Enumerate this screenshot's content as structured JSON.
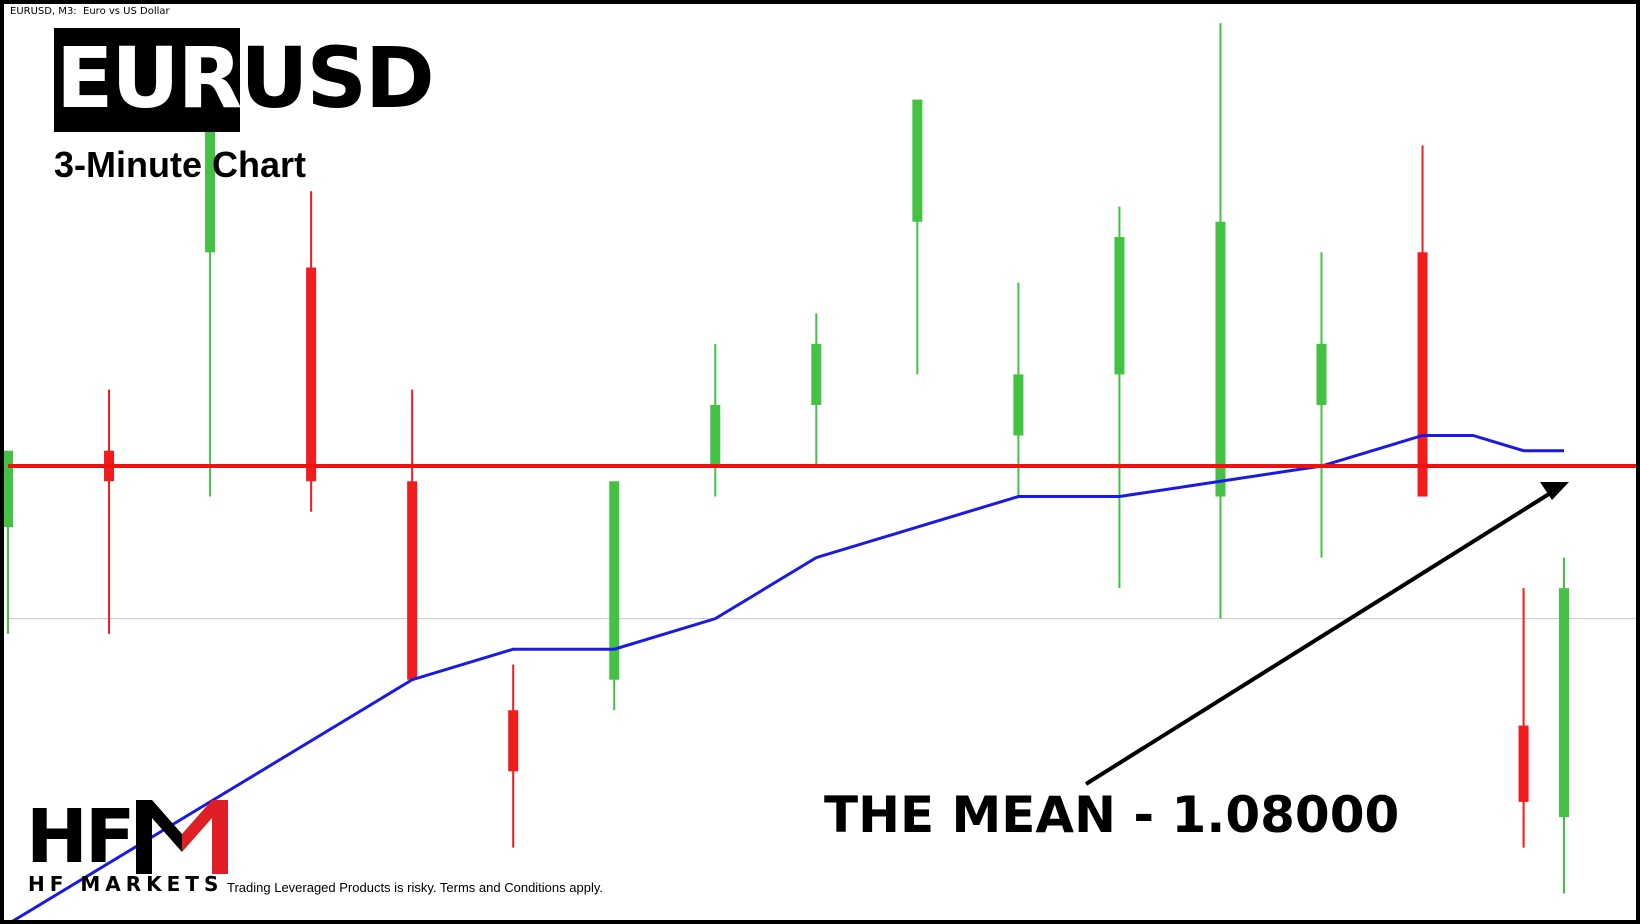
{
  "header": {
    "symbol_tag": "EURUSD, M3:  Euro vs US Dollar",
    "title_part1": "EUR",
    "title_part2": "USD",
    "subtitle": "3-Minute Chart"
  },
  "annotation": {
    "text": "THE MEAN - 1.08000"
  },
  "branding": {
    "logo_text": "HF",
    "logo_m_icon": "hfm-m-logo-icon",
    "logo_subtext": "HF MARKETS",
    "disclaimer": "Trading Leveraged Products is risky. Terms and Conditions apply."
  },
  "colors": {
    "bull": "#43c243",
    "bear": "#f21c1c",
    "mean_line": "#ee1111",
    "moving_average": "#1a1ae6",
    "background": "#ffffff",
    "logo_accent": "#e01e25"
  },
  "chart_data": {
    "type": "candlestick",
    "title": "EURUSD",
    "subtitle": "3-Minute Chart",
    "xlabel": "",
    "ylabel": "",
    "grid": false,
    "ylim": [
      1.077,
      1.083
    ],
    "mean_level": 1.08,
    "reference_level": 1.079,
    "x_points": [
      0,
      100,
      200,
      300,
      400,
      500,
      600,
      700,
      800,
      900,
      1000,
      1100,
      1200,
      1300,
      1400,
      1500,
      1540
    ],
    "candles": {
      "open": [
        1.0796,
        1.0801,
        1.0814,
        1.0813,
        1.0799,
        1.0784,
        1.0786,
        1.08,
        1.0804,
        1.0816,
        1.0802,
        1.0806,
        1.0798,
        1.0804,
        1.0814,
        1.0783,
        1.0777
      ],
      "high": [
        1.08,
        1.0805,
        1.0827,
        1.0818,
        1.0805,
        1.0787,
        1.0791,
        1.0808,
        1.081,
        1.0824,
        1.0812,
        1.0817,
        1.0829,
        1.0814,
        1.0821,
        1.0792,
        1.0794
      ],
      "low": [
        1.0789,
        1.0789,
        1.0798,
        1.0797,
        1.0789,
        1.0775,
        1.0784,
        1.0798,
        1.08,
        1.0806,
        1.0798,
        1.0792,
        1.079,
        1.0794,
        1.0798,
        1.0775,
        1.0772
      ],
      "close": [
        1.0801,
        1.0799,
        1.0823,
        1.0799,
        1.0786,
        1.078,
        1.0799,
        1.0804,
        1.0808,
        1.0824,
        1.0806,
        1.0815,
        1.0816,
        1.0808,
        1.0798,
        1.0778,
        1.0792
      ]
    },
    "moving_average": {
      "x": [
        0,
        200,
        400,
        500,
        600,
        700,
        800,
        900,
        1000,
        1100,
        1200,
        1300,
        1400,
        1450,
        1500,
        1540
      ],
      "y": [
        1.077,
        1.0778,
        1.0786,
        1.0788,
        1.0788,
        1.079,
        1.0794,
        1.0796,
        1.0798,
        1.0798,
        1.0799,
        1.08,
        1.0802,
        1.0802,
        1.0801,
        1.0801
      ]
    }
  }
}
